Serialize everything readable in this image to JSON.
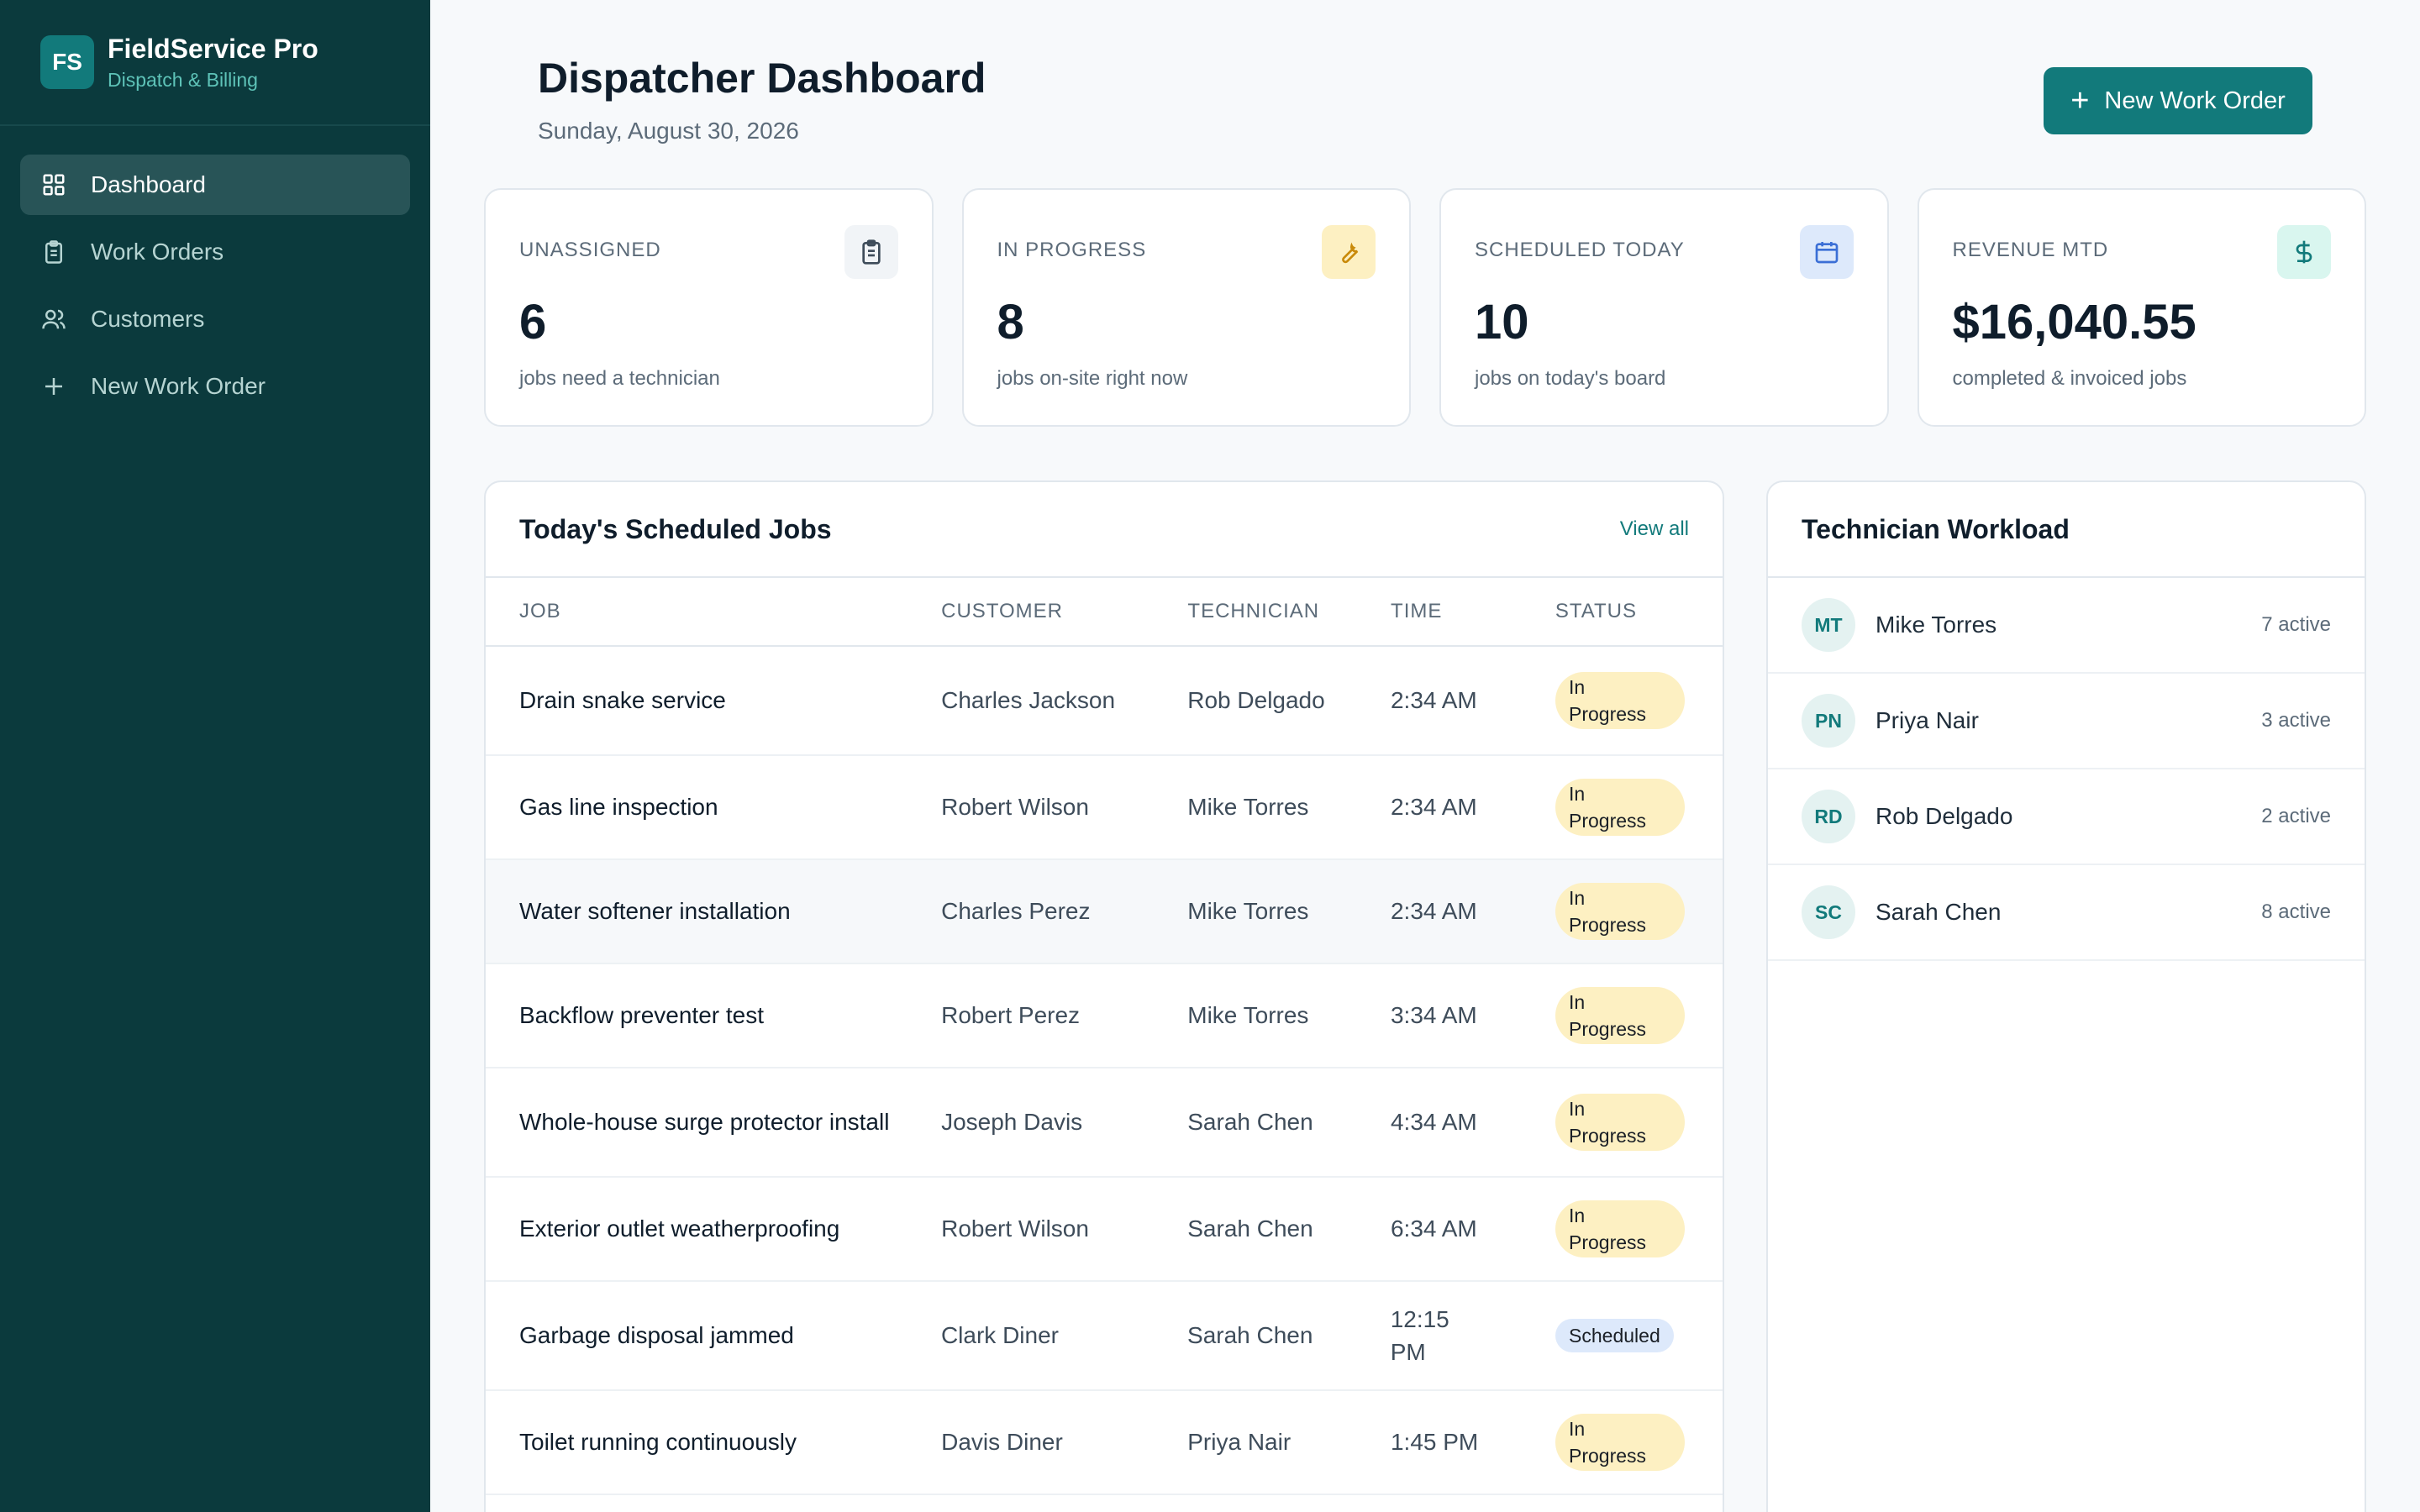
{
  "brand": {
    "logo": "FS",
    "title": "FieldService Pro",
    "subtitle": "Dispatch & Billing"
  },
  "nav": [
    {
      "label": "Dashboard",
      "icon": "grid-icon",
      "active": true
    },
    {
      "label": "Work Orders",
      "icon": "clipboard-icon"
    },
    {
      "label": "Customers",
      "icon": "users-icon"
    },
    {
      "label": "New Work Order",
      "icon": "plus-icon"
    }
  ],
  "header": {
    "title": "Dispatcher Dashboard",
    "date": "Sunday, August 30, 2026",
    "new_button": "New Work Order"
  },
  "stats": [
    {
      "label": "UNASSIGNED",
      "value": "6",
      "sub": "jobs need a technician",
      "icon": "clipboard-icon",
      "color": "#f1f4f7"
    },
    {
      "label": "IN PROGRESS",
      "value": "8",
      "sub": "jobs on-site right now",
      "icon": "wrench-icon",
      "color": "#fdf0c2"
    },
    {
      "label": "SCHEDULED TODAY",
      "value": "10",
      "sub": "jobs on today's board",
      "icon": "calendar-icon",
      "color": "#dde9fb"
    },
    {
      "label": "REVENUE MTD",
      "value": "$16,040.55",
      "sub": "completed & invoiced jobs",
      "icon": "dollar-icon",
      "color": "#d9f6ef"
    }
  ],
  "jobs": {
    "title": "Today's Scheduled Jobs",
    "view_all": "View all",
    "columns": [
      "JOB",
      "CUSTOMER",
      "TECHNICIAN",
      "TIME",
      "STATUS"
    ],
    "rows": [
      {
        "job": "Drain snake service",
        "customer": "Charles Jackson",
        "tech": "Rob Delgado",
        "time": "2:34 AM",
        "status": "In Progress"
      },
      {
        "job": "Gas line inspection",
        "customer": "Robert Wilson",
        "tech": "Mike Torres",
        "time": "2:34 AM",
        "status": "In Progress"
      },
      {
        "job": "Water softener installation",
        "customer": "Charles Perez",
        "tech": "Mike Torres",
        "time": "2:34 AM",
        "status": "In Progress"
      },
      {
        "job": "Backflow preventer test",
        "customer": "Robert Perez",
        "tech": "Mike Torres",
        "time": "3:34 AM",
        "status": "In Progress"
      },
      {
        "job": "Whole-house surge protector install",
        "customer": "Joseph Davis",
        "tech": "Sarah Chen",
        "time": "4:34 AM",
        "status": "In Progress"
      },
      {
        "job": "Exterior outlet weatherproofing",
        "customer": "Robert Wilson",
        "tech": "Sarah Chen",
        "time": "6:34 AM",
        "status": "In Progress"
      },
      {
        "job": "Garbage disposal jammed",
        "customer": "Clark Diner",
        "tech": "Sarah Chen",
        "time": "12:15 PM",
        "status": "Scheduled"
      },
      {
        "job": "Toilet running continuously",
        "customer": "Davis Diner",
        "tech": "Priya Nair",
        "time": "1:45 PM",
        "status": "In Progress"
      }
    ]
  },
  "workload": {
    "title": "Technician Workload",
    "techs": [
      {
        "initials": "MT",
        "name": "Mike Torres",
        "count": "7 active"
      },
      {
        "initials": "PN",
        "name": "Priya Nair",
        "count": "3 active"
      },
      {
        "initials": "RD",
        "name": "Rob Delgado",
        "count": "2 active"
      },
      {
        "initials": "SC",
        "name": "Sarah Chen",
        "count": "8 active"
      }
    ]
  }
}
